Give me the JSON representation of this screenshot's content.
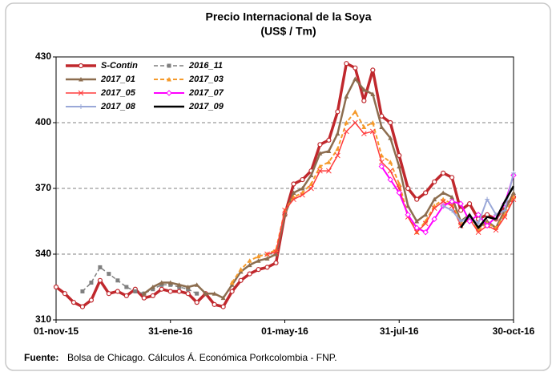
{
  "chart_data": {
    "type": "line",
    "title": "Precio Internacional de la Soya",
    "subtitle": "(US$ / Tm)",
    "source_label": "Fuente:",
    "source_text": "Bolsa de Chicago. Cálculos Á. Económica Porkcolombia - FNP.",
    "categories": [
      "01-nov-15",
      null,
      null,
      null,
      null,
      null,
      null,
      null,
      null,
      null,
      null,
      null,
      null,
      "31-ene-16",
      null,
      null,
      null,
      null,
      null,
      null,
      null,
      null,
      null,
      null,
      null,
      null,
      "01-may-16",
      null,
      null,
      null,
      null,
      null,
      null,
      null,
      null,
      null,
      null,
      null,
      null,
      "31-jul-16",
      null,
      null,
      null,
      null,
      null,
      null,
      null,
      null,
      null,
      null,
      null,
      null,
      "30-oct-16"
    ],
    "ylim": [
      310,
      430
    ],
    "yticks": [
      310,
      340,
      370,
      400,
      430
    ],
    "grid": true,
    "series": [
      {
        "name": "S-Contin",
        "color": "#c0282d",
        "width": 3.5,
        "dash": false,
        "marker": "circle",
        "values": [
          325,
          322,
          318,
          316,
          319,
          328,
          322,
          323,
          321,
          324,
          320,
          321,
          324,
          323,
          323,
          322,
          318,
          322,
          317,
          316,
          323,
          328,
          331,
          333,
          334,
          336,
          358,
          372,
          374,
          378,
          390,
          392,
          405,
          427,
          425,
          410,
          424,
          403,
          400,
          385,
          370,
          365,
          368,
          373,
          377,
          375,
          360,
          363,
          356,
          358,
          356,
          362,
          366
        ]
      },
      {
        "name": "2016_11",
        "color": "#7f7f7f",
        "width": 1.5,
        "dash": true,
        "marker": "square",
        "values": [
          null,
          null,
          null,
          323,
          327,
          334,
          331,
          328,
          325,
          323,
          322,
          324,
          326,
          326,
          325,
          324,
          322,
          null,
          null,
          null,
          null,
          null,
          null,
          null,
          null,
          null,
          null,
          null,
          null,
          null,
          null,
          null,
          null,
          null,
          null,
          null,
          null,
          null,
          null,
          null,
          null,
          null,
          null,
          null,
          null,
          null,
          null,
          null,
          null,
          null,
          null,
          null,
          null
        ]
      },
      {
        "name": "2017_01",
        "color": "#8c6d4f",
        "width": 2.5,
        "dash": false,
        "marker": "triangle",
        "values": [
          null,
          null,
          null,
          null,
          null,
          null,
          null,
          null,
          null,
          null,
          322,
          325,
          327,
          327,
          326,
          325,
          326,
          322,
          322,
          320,
          326,
          332,
          335,
          337,
          338,
          340,
          358,
          368,
          370,
          376,
          386,
          387,
          395,
          412,
          420,
          415,
          413,
          398,
          393,
          380,
          362,
          355,
          358,
          365,
          368,
          366,
          355,
          358,
          352,
          355,
          352,
          360,
          368
        ]
      },
      {
        "name": "2017_03",
        "color": "#f59a2b",
        "width": 2,
        "dash": true,
        "marker": "triangle",
        "values": [
          null,
          null,
          null,
          null,
          null,
          null,
          null,
          null,
          null,
          null,
          null,
          null,
          null,
          null,
          null,
          null,
          null,
          null,
          null,
          null,
          327,
          333,
          337,
          339,
          340,
          342,
          360,
          366,
          368,
          372,
          380,
          382,
          388,
          400,
          405,
          398,
          400,
          385,
          382,
          372,
          358,
          350,
          355,
          362,
          365,
          363,
          354,
          356,
          351,
          354,
          352,
          358,
          366
        ]
      },
      {
        "name": "2017_05",
        "color": "#ff3b3b",
        "width": 1.5,
        "dash": false,
        "marker": "x",
        "values": [
          null,
          null,
          null,
          null,
          null,
          null,
          null,
          null,
          null,
          null,
          null,
          null,
          null,
          null,
          null,
          null,
          null,
          null,
          null,
          null,
          null,
          null,
          null,
          null,
          340,
          341,
          360,
          365,
          367,
          370,
          378,
          378,
          385,
          396,
          400,
          395,
          396,
          382,
          378,
          370,
          357,
          350,
          354,
          361,
          364,
          362,
          353,
          356,
          350,
          353,
          351,
          357,
          365
        ]
      },
      {
        "name": "2017_07",
        "color": "#ff00ff",
        "width": 2,
        "dash": false,
        "marker": "diamond",
        "values": [
          null,
          null,
          null,
          null,
          null,
          null,
          null,
          null,
          null,
          null,
          null,
          null,
          null,
          null,
          null,
          null,
          null,
          null,
          null,
          null,
          null,
          null,
          null,
          null,
          null,
          null,
          null,
          null,
          null,
          null,
          null,
          null,
          null,
          null,
          null,
          null,
          null,
          380,
          374,
          368,
          358,
          352,
          350,
          356,
          362,
          364,
          363,
          355,
          358,
          353,
          357,
          363,
          376
        ]
      },
      {
        "name": "2017_08",
        "color": "#9aa8d8",
        "width": 2,
        "dash": false,
        "marker": "plus",
        "values": [
          null,
          null,
          null,
          null,
          null,
          null,
          null,
          null,
          null,
          null,
          null,
          null,
          null,
          null,
          null,
          null,
          null,
          null,
          null,
          null,
          null,
          null,
          null,
          null,
          null,
          null,
          null,
          null,
          null,
          null,
          null,
          null,
          null,
          null,
          null,
          null,
          null,
          null,
          null,
          null,
          null,
          null,
          null,
          null,
          362,
          360,
          355,
          357,
          354,
          365,
          358,
          360,
          377
        ]
      },
      {
        "name": "2017_09",
        "color": "#000000",
        "width": 2.5,
        "dash": false,
        "marker": "none",
        "values": [
          null,
          null,
          null,
          null,
          null,
          null,
          null,
          null,
          null,
          null,
          null,
          null,
          null,
          null,
          null,
          null,
          null,
          null,
          null,
          null,
          null,
          null,
          null,
          null,
          null,
          null,
          null,
          null,
          null,
          null,
          null,
          null,
          null,
          null,
          null,
          null,
          null,
          null,
          null,
          null,
          null,
          null,
          null,
          null,
          null,
          null,
          352,
          358,
          352,
          357,
          356,
          364,
          371
        ]
      }
    ]
  }
}
